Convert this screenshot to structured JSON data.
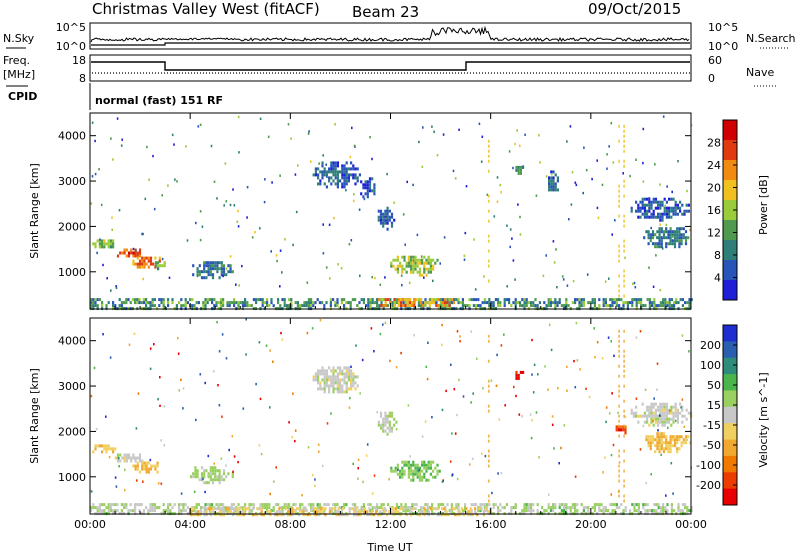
{
  "header": {
    "site": "Christmas Valley West (fitACF)",
    "beam": "Beam 23",
    "date": "09/Oct/2015"
  },
  "top_panels": {
    "nsky_label": "N.Sky",
    "nsky_ticks": [
      "10^5",
      "10^0"
    ],
    "nsearch_label": "N.Search",
    "nsearch_ticks": [
      "10^5",
      "10^0"
    ],
    "freq_label": "Freq.",
    "freq_unit": "[MHz]",
    "freq_ticks": [
      "18",
      "8"
    ],
    "nave_label": "Nave",
    "nave_ticks": [
      "60",
      "0"
    ],
    "cpid_label": "CPID",
    "cpid_text": "normal (fast) 151 RF"
  },
  "colors": {
    "power_scale": [
      "#1f1fd8",
      "#2a55b8",
      "#2f7e78",
      "#4f9a4f",
      "#9acb3a",
      "#f0c020",
      "#f08a10",
      "#e03a10",
      "#d00000"
    ],
    "velocity_scale": [
      "#e80000",
      "#ec3c00",
      "#f07a00",
      "#f0a830",
      "#f0d060",
      "#c8c8c8",
      "#9ad060",
      "#4cb44c",
      "#2f8c7a",
      "#2a5fb0",
      "#1e2ed0"
    ]
  },
  "chart_data": [
    {
      "type": "heatmap",
      "name": "power",
      "ylabel": "Slant Range [km]",
      "colorbar_label": "Power [dB]",
      "colorbar_ticks": [
        "4",
        "8",
        "12",
        "16",
        "20",
        "24",
        "28"
      ],
      "colorbar_range": [
        0,
        32
      ],
      "x_ticks": [
        "00:00",
        "04:00",
        "08:00",
        "12:00",
        "16:00",
        "20:00",
        "00:00"
      ],
      "x_range_hours": [
        0,
        24
      ],
      "y_ticks": [
        "1000",
        "2000",
        "3000",
        "4000"
      ],
      "y_range_km": [
        180,
        4500
      ],
      "blobs": [
        {
          "t0": 0.0,
          "t1": 1.0,
          "r0": 1520,
          "r1": 1780,
          "v": 14
        },
        {
          "t0": 0.9,
          "t1": 2.2,
          "r0": 1330,
          "r1": 1580,
          "v": 26
        },
        {
          "t0": 1.6,
          "t1": 2.9,
          "r0": 1100,
          "r1": 1400,
          "v": 24
        },
        {
          "t0": 2.5,
          "t1": 3.1,
          "r0": 1080,
          "r1": 1300,
          "v": 14
        },
        {
          "t0": 3.9,
          "t1": 5.7,
          "r0": 880,
          "r1": 1300,
          "v": 8
        },
        {
          "t0": 8.8,
          "t1": 10.8,
          "r0": 2850,
          "r1": 3500,
          "v": 6
        },
        {
          "t0": 10.7,
          "t1": 11.4,
          "r0": 2650,
          "r1": 3150,
          "v": 5
        },
        {
          "t0": 11.4,
          "t1": 12.2,
          "r0": 1950,
          "r1": 2500,
          "v": 6
        },
        {
          "t0": 11.9,
          "t1": 14.0,
          "r0": 920,
          "r1": 1420,
          "v": 16
        },
        {
          "t0": 16.9,
          "t1": 17.3,
          "r0": 3150,
          "r1": 3400,
          "v": 12
        },
        {
          "t0": 18.2,
          "t1": 18.7,
          "r0": 2700,
          "r1": 3300,
          "v": 6
        },
        {
          "t0": 21.5,
          "t1": 24.0,
          "r0": 2150,
          "r1": 2700,
          "v": 6
        },
        {
          "t0": 22.0,
          "t1": 24.0,
          "r0": 1550,
          "r1": 2050,
          "v": 8
        },
        {
          "t0": 0.0,
          "t1": 24.0,
          "r0": 190,
          "r1": 420,
          "v": 10
        },
        {
          "t0": 11.5,
          "t1": 14.5,
          "r0": 250,
          "r1": 420,
          "v": 22
        }
      ]
    },
    {
      "type": "heatmap",
      "name": "velocity",
      "ylabel": "Slant Range [km]",
      "colorbar_label": "Velocity [m s^-1]",
      "colorbar_ticks": [
        "-200",
        "-100",
        "-50",
        "-15",
        "15",
        "50",
        "100",
        "200"
      ],
      "colorbar_range": [
        -250,
        250
      ],
      "x_ticks": [
        "00:00",
        "04:00",
        "08:00",
        "12:00",
        "16:00",
        "20:00",
        "00:00"
      ],
      "x_range_hours": [
        0,
        24
      ],
      "y_ticks": [
        "1000",
        "2000",
        "3000",
        "4000"
      ],
      "y_range_km": [
        180,
        4500
      ],
      "xlabel": "Time UT",
      "blobs": [
        {
          "t0": 0.0,
          "t1": 1.1,
          "r0": 1520,
          "r1": 1780,
          "v": -60
        },
        {
          "t0": 0.9,
          "t1": 2.2,
          "r0": 1330,
          "r1": 1580,
          "v": 0
        },
        {
          "t0": 1.6,
          "t1": 2.9,
          "r0": 1100,
          "r1": 1400,
          "v": -70
        },
        {
          "t0": 3.9,
          "t1": 5.7,
          "r0": 880,
          "r1": 1300,
          "v": 40
        },
        {
          "t0": 8.8,
          "t1": 10.8,
          "r0": 2850,
          "r1": 3500,
          "v": 0
        },
        {
          "t0": 11.4,
          "t1": 12.2,
          "r0": 1950,
          "r1": 2500,
          "v": 30
        },
        {
          "t0": 11.9,
          "t1": 14.0,
          "r0": 920,
          "r1": 1420,
          "v": 60
        },
        {
          "t0": 16.9,
          "t1": 17.3,
          "r0": 3150,
          "r1": 3400,
          "v": -230
        },
        {
          "t0": 20.9,
          "t1": 21.4,
          "r0": 1950,
          "r1": 2200,
          "v": -180
        },
        {
          "t0": 21.5,
          "t1": 24.0,
          "r0": 2150,
          "r1": 2700,
          "v": 0
        },
        {
          "t0": 22.0,
          "t1": 24.0,
          "r0": 1550,
          "r1": 2050,
          "v": -60
        },
        {
          "t0": 0.0,
          "t1": 24.0,
          "r0": 190,
          "r1": 420,
          "v": 30
        },
        {
          "t0": 4.0,
          "t1": 16.0,
          "r0": 190,
          "r1": 330,
          "v": -40
        }
      ]
    }
  ]
}
